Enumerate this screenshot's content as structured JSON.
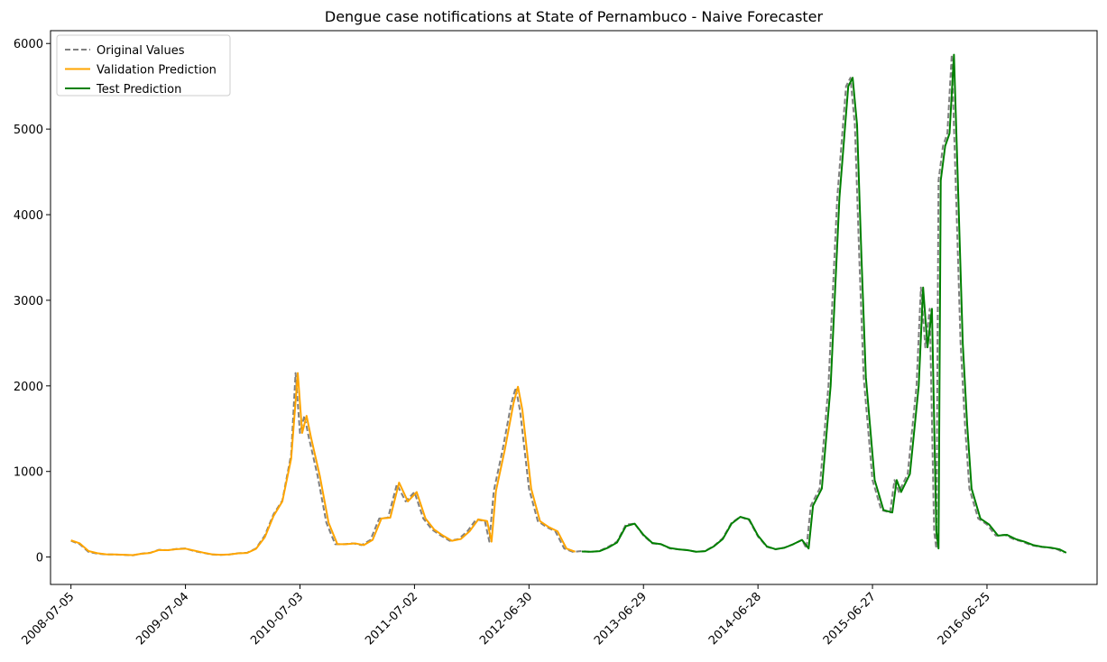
{
  "chart_data": {
    "type": "line",
    "title": "Dengue case notifications at State of Pernambuco - Naive Forecaster",
    "xlabel": "",
    "ylabel": "",
    "xlim": [
      "2008-05-01",
      "2017-06-10"
    ],
    "ylim": [
      -320,
      6150
    ],
    "x_ticks": [
      "2008-07-05",
      "2009-07-04",
      "2010-07-03",
      "2011-07-02",
      "2012-06-30",
      "2013-06-29",
      "2014-06-28",
      "2015-06-27",
      "2016-06-25"
    ],
    "y_ticks": [
      0,
      1000,
      2000,
      3000,
      4000,
      5000,
      6000
    ],
    "grid": false,
    "legend_position": "top-left",
    "colors": {
      "original": "#808080",
      "validation": "#FFA500",
      "test": "#008000",
      "axis": "#000000"
    },
    "series": [
      {
        "name": "Original Values",
        "style": "dashed",
        "color": "#808080",
        "points": [
          [
            "2008-07-05",
            190
          ],
          [
            "2008-08-02",
            150
          ],
          [
            "2008-08-30",
            60
          ],
          [
            "2008-09-27",
            40
          ],
          [
            "2008-10-25",
            30
          ],
          [
            "2008-11-22",
            30
          ],
          [
            "2008-12-20",
            25
          ],
          [
            "2009-01-17",
            20
          ],
          [
            "2009-02-14",
            40
          ],
          [
            "2009-03-14",
            50
          ],
          [
            "2009-04-11",
            85
          ],
          [
            "2009-05-09",
            80
          ],
          [
            "2009-06-06",
            95
          ],
          [
            "2009-07-04",
            100
          ],
          [
            "2009-08-01",
            70
          ],
          [
            "2009-08-29",
            50
          ],
          [
            "2009-09-26",
            30
          ],
          [
            "2009-10-24",
            25
          ],
          [
            "2009-11-21",
            30
          ],
          [
            "2009-12-19",
            45
          ],
          [
            "2010-01-16",
            50
          ],
          [
            "2010-02-13",
            100
          ],
          [
            "2010-03-13",
            250
          ],
          [
            "2010-04-10",
            500
          ],
          [
            "2010-05-08",
            660
          ],
          [
            "2010-06-05",
            1200
          ],
          [
            "2010-06-19",
            2150
          ],
          [
            "2010-07-03",
            1450
          ],
          [
            "2010-07-17",
            1650
          ],
          [
            "2010-07-31",
            1400
          ],
          [
            "2010-08-28",
            950
          ],
          [
            "2010-09-25",
            400
          ],
          [
            "2010-10-23",
            150
          ],
          [
            "2010-11-20",
            150
          ],
          [
            "2010-12-18",
            160
          ],
          [
            "2011-01-15",
            140
          ],
          [
            "2011-02-12",
            200
          ],
          [
            "2011-03-12",
            450
          ],
          [
            "2011-04-09",
            460
          ],
          [
            "2011-05-07",
            850
          ],
          [
            "2011-06-04",
            650
          ],
          [
            "2011-07-02",
            760
          ],
          [
            "2011-07-30",
            450
          ],
          [
            "2011-08-27",
            320
          ],
          [
            "2011-09-24",
            250
          ],
          [
            "2011-10-22",
            190
          ],
          [
            "2011-11-19",
            210
          ],
          [
            "2011-12-17",
            300
          ],
          [
            "2012-01-14",
            440
          ],
          [
            "2012-02-11",
            420
          ],
          [
            "2012-02-25",
            180
          ],
          [
            "2012-03-10",
            770
          ],
          [
            "2012-04-07",
            1250
          ],
          [
            "2012-05-05",
            1800
          ],
          [
            "2012-05-19",
            1980
          ],
          [
            "2012-06-02",
            1700
          ],
          [
            "2012-06-30",
            800
          ],
          [
            "2012-07-28",
            420
          ],
          [
            "2012-08-25",
            350
          ],
          [
            "2012-09-22",
            300
          ],
          [
            "2012-10-20",
            100
          ],
          [
            "2012-11-17",
            60
          ],
          [
            "2012-12-15",
            70
          ],
          [
            "2013-01-12",
            60
          ],
          [
            "2013-02-09",
            70
          ],
          [
            "2013-03-09",
            120
          ],
          [
            "2013-04-06",
            180
          ],
          [
            "2013-05-04",
            380
          ],
          [
            "2013-06-01",
            390
          ],
          [
            "2013-06-29",
            250
          ],
          [
            "2013-07-27",
            160
          ],
          [
            "2013-08-24",
            150
          ],
          [
            "2013-09-21",
            100
          ],
          [
            "2013-10-19",
            90
          ],
          [
            "2013-11-16",
            80
          ],
          [
            "2013-12-14",
            60
          ],
          [
            "2014-01-11",
            70
          ],
          [
            "2014-02-08",
            130
          ],
          [
            "2014-03-08",
            220
          ],
          [
            "2014-04-05",
            400
          ],
          [
            "2014-05-03",
            470
          ],
          [
            "2014-05-31",
            430
          ],
          [
            "2014-06-28",
            240
          ],
          [
            "2014-07-26",
            120
          ],
          [
            "2014-08-23",
            90
          ],
          [
            "2014-09-20",
            110
          ],
          [
            "2014-10-18",
            150
          ],
          [
            "2014-11-15",
            200
          ],
          [
            "2014-11-29",
            100
          ],
          [
            "2014-12-13",
            600
          ],
          [
            "2015-01-10",
            800
          ],
          [
            "2015-02-07",
            2000
          ],
          [
            "2015-03-07",
            4200
          ],
          [
            "2015-04-04",
            5500
          ],
          [
            "2015-04-18",
            5600
          ],
          [
            "2015-05-02",
            5050
          ],
          [
            "2015-05-16",
            3500
          ],
          [
            "2015-05-30",
            2100
          ],
          [
            "2015-06-27",
            900
          ],
          [
            "2015-07-25",
            550
          ],
          [
            "2015-08-22",
            520
          ],
          [
            "2015-09-05",
            900
          ],
          [
            "2015-09-19",
            760
          ],
          [
            "2015-10-17",
            970
          ],
          [
            "2015-11-14",
            2000
          ],
          [
            "2015-11-28",
            3150
          ],
          [
            "2015-12-12",
            2450
          ],
          [
            "2015-12-26",
            2900
          ],
          [
            "2016-01-09",
            300
          ],
          [
            "2016-01-16",
            100
          ],
          [
            "2016-01-23",
            4400
          ],
          [
            "2016-02-06",
            4800
          ],
          [
            "2016-02-20",
            4950
          ],
          [
            "2016-03-05",
            5870
          ],
          [
            "2016-03-19",
            4200
          ],
          [
            "2016-04-02",
            2500
          ],
          [
            "2016-04-16",
            1550
          ],
          [
            "2016-04-30",
            800
          ],
          [
            "2016-05-28",
            450
          ],
          [
            "2016-06-25",
            380
          ],
          [
            "2016-07-23",
            250
          ],
          [
            "2016-08-20",
            260
          ],
          [
            "2016-09-17",
            210
          ],
          [
            "2016-10-15",
            180
          ],
          [
            "2016-11-12",
            140
          ],
          [
            "2016-12-10",
            120
          ],
          [
            "2017-01-07",
            110
          ],
          [
            "2017-02-04",
            90
          ],
          [
            "2017-02-25",
            50
          ]
        ]
      },
      {
        "name": "Validation Prediction",
        "style": "solid",
        "color": "#FFA500",
        "points": [
          [
            "2008-07-05",
            195
          ],
          [
            "2008-08-02",
            160
          ],
          [
            "2008-08-30",
            70
          ],
          [
            "2008-09-27",
            45
          ],
          [
            "2008-10-25",
            32
          ],
          [
            "2008-11-22",
            30
          ],
          [
            "2008-12-20",
            26
          ],
          [
            "2009-01-17",
            22
          ],
          [
            "2009-02-14",
            38
          ],
          [
            "2009-03-14",
            48
          ],
          [
            "2009-04-11",
            82
          ],
          [
            "2009-05-09",
            80
          ],
          [
            "2009-06-06",
            92
          ],
          [
            "2009-07-04",
            98
          ],
          [
            "2009-08-01",
            75
          ],
          [
            "2009-08-29",
            52
          ],
          [
            "2009-09-26",
            32
          ],
          [
            "2009-10-24",
            26
          ],
          [
            "2009-11-21",
            30
          ],
          [
            "2009-12-19",
            44
          ],
          [
            "2010-01-16",
            48
          ],
          [
            "2010-02-13",
            95
          ],
          [
            "2010-03-13",
            230
          ],
          [
            "2010-04-10",
            480
          ],
          [
            "2010-05-08",
            650
          ],
          [
            "2010-06-05",
            1150
          ],
          [
            "2010-06-26",
            2150
          ],
          [
            "2010-07-10",
            1450
          ],
          [
            "2010-07-24",
            1650
          ],
          [
            "2010-08-07",
            1400
          ],
          [
            "2010-09-04",
            950
          ],
          [
            "2010-10-02",
            400
          ],
          [
            "2010-10-30",
            150
          ],
          [
            "2010-11-27",
            150
          ],
          [
            "2010-12-25",
            160
          ],
          [
            "2011-01-22",
            140
          ],
          [
            "2011-02-19",
            200
          ],
          [
            "2011-03-19",
            450
          ],
          [
            "2011-04-16",
            460
          ],
          [
            "2011-05-14",
            870
          ],
          [
            "2011-06-11",
            650
          ],
          [
            "2011-07-09",
            760
          ],
          [
            "2011-08-06",
            450
          ],
          [
            "2011-09-03",
            320
          ],
          [
            "2011-10-01",
            250
          ],
          [
            "2011-10-29",
            190
          ],
          [
            "2011-11-26",
            210
          ],
          [
            "2011-12-24",
            300
          ],
          [
            "2012-01-21",
            440
          ],
          [
            "2012-02-18",
            420
          ],
          [
            "2012-03-03",
            180
          ],
          [
            "2012-03-17",
            770
          ],
          [
            "2012-04-14",
            1250
          ],
          [
            "2012-05-12",
            1800
          ],
          [
            "2012-05-26",
            1990
          ],
          [
            "2012-06-09",
            1720
          ],
          [
            "2012-07-07",
            800
          ],
          [
            "2012-08-04",
            420
          ],
          [
            "2012-09-01",
            350
          ],
          [
            "2012-09-29",
            300
          ],
          [
            "2012-10-27",
            100
          ],
          [
            "2012-11-24",
            62
          ]
        ]
      },
      {
        "name": "Test Prediction",
        "style": "solid",
        "color": "#008000",
        "points": [
          [
            "2012-12-15",
            65
          ],
          [
            "2013-01-12",
            62
          ],
          [
            "2013-02-09",
            68
          ],
          [
            "2013-03-09",
            110
          ],
          [
            "2013-04-06",
            170
          ],
          [
            "2013-05-04",
            360
          ],
          [
            "2013-06-01",
            390
          ],
          [
            "2013-06-29",
            260
          ],
          [
            "2013-07-27",
            165
          ],
          [
            "2013-08-24",
            150
          ],
          [
            "2013-09-21",
            105
          ],
          [
            "2013-10-19",
            90
          ],
          [
            "2013-11-16",
            80
          ],
          [
            "2013-12-14",
            62
          ],
          [
            "2014-01-11",
            68
          ],
          [
            "2014-02-08",
            125
          ],
          [
            "2014-03-08",
            210
          ],
          [
            "2014-04-05",
            390
          ],
          [
            "2014-05-03",
            470
          ],
          [
            "2014-05-31",
            440
          ],
          [
            "2014-06-28",
            250
          ],
          [
            "2014-07-26",
            125
          ],
          [
            "2014-08-23",
            92
          ],
          [
            "2014-09-20",
            108
          ],
          [
            "2014-10-18",
            150
          ],
          [
            "2014-11-15",
            200
          ],
          [
            "2014-12-06",
            100
          ],
          [
            "2014-12-20",
            600
          ],
          [
            "2015-01-17",
            800
          ],
          [
            "2015-02-14",
            2000
          ],
          [
            "2015-03-14",
            4200
          ],
          [
            "2015-04-11",
            5500
          ],
          [
            "2015-04-25",
            5600
          ],
          [
            "2015-05-09",
            5050
          ],
          [
            "2015-05-23",
            3500
          ],
          [
            "2015-06-06",
            2100
          ],
          [
            "2015-07-04",
            900
          ],
          [
            "2015-08-01",
            550
          ],
          [
            "2015-08-29",
            520
          ],
          [
            "2015-09-12",
            900
          ],
          [
            "2015-09-26",
            760
          ],
          [
            "2015-10-24",
            970
          ],
          [
            "2015-11-21",
            2000
          ],
          [
            "2015-12-05",
            3150
          ],
          [
            "2015-12-19",
            2450
          ],
          [
            "2016-01-02",
            2900
          ],
          [
            "2016-01-16",
            300
          ],
          [
            "2016-01-23",
            100
          ],
          [
            "2016-01-30",
            4400
          ],
          [
            "2016-02-13",
            4800
          ],
          [
            "2016-02-27",
            4950
          ],
          [
            "2016-03-12",
            5870
          ],
          [
            "2016-03-26",
            4200
          ],
          [
            "2016-04-09",
            2500
          ],
          [
            "2016-04-23",
            1550
          ],
          [
            "2016-05-07",
            800
          ],
          [
            "2016-06-04",
            450
          ],
          [
            "2016-07-02",
            380
          ],
          [
            "2016-07-30",
            250
          ],
          [
            "2016-08-27",
            260
          ],
          [
            "2016-09-24",
            210
          ],
          [
            "2016-10-22",
            180
          ],
          [
            "2016-11-19",
            140
          ],
          [
            "2016-12-17",
            120
          ],
          [
            "2017-01-14",
            110
          ],
          [
            "2017-02-11",
            90
          ],
          [
            "2017-03-04",
            50
          ]
        ]
      }
    ]
  }
}
